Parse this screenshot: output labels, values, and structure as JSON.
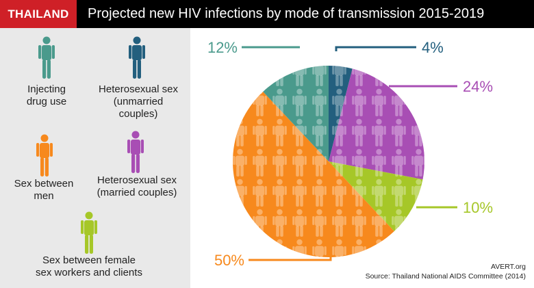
{
  "header": {
    "tag": "THAILAND",
    "title": "Projected new HIV infections by mode of transmission 2015-2019"
  },
  "legend": [
    {
      "label_lines": [
        "Injecting",
        "drug use"
      ],
      "color": "#4a9a8c",
      "icon": "person-icon"
    },
    {
      "label_lines": [
        "Heterosexual sex",
        "(unmarried",
        "couples)"
      ],
      "color": "#235f7e",
      "icon": "person-icon"
    },
    {
      "label_lines": [
        "Sex between",
        "men"
      ],
      "color": "#f7891d",
      "icon": "person-icon"
    },
    {
      "label_lines": [
        "Heterosexual sex",
        "(married couples)"
      ],
      "color": "#a84eb4",
      "icon": "person-icon"
    },
    {
      "label_lines": [
        "Sex between female",
        "sex workers and clients"
      ],
      "color": "#a6c728",
      "icon": "person-icon"
    }
  ],
  "chart_data": {
    "type": "pie",
    "title": "Projected new HIV infections by mode of transmission 2015-2019",
    "slices": [
      {
        "name": "Heterosexual sex (unmarried couples)",
        "value": 4,
        "label": "4%",
        "color": "#235f7e"
      },
      {
        "name": "Heterosexual sex (married couples)",
        "value": 24,
        "label": "24%",
        "color": "#a84eb4"
      },
      {
        "name": "Sex between female sex workers and clients",
        "value": 10,
        "label": "10%",
        "color": "#a6c728"
      },
      {
        "name": "Sex between men",
        "value": 50,
        "label": "50%",
        "color": "#f7891d"
      },
      {
        "name": "Injecting drug use",
        "value": 12,
        "label": "12%",
        "color": "#4a9a8c"
      }
    ]
  },
  "credits": {
    "org": "AVERT.org",
    "source": "Source: Thailand National AIDS Committee (2014)"
  }
}
